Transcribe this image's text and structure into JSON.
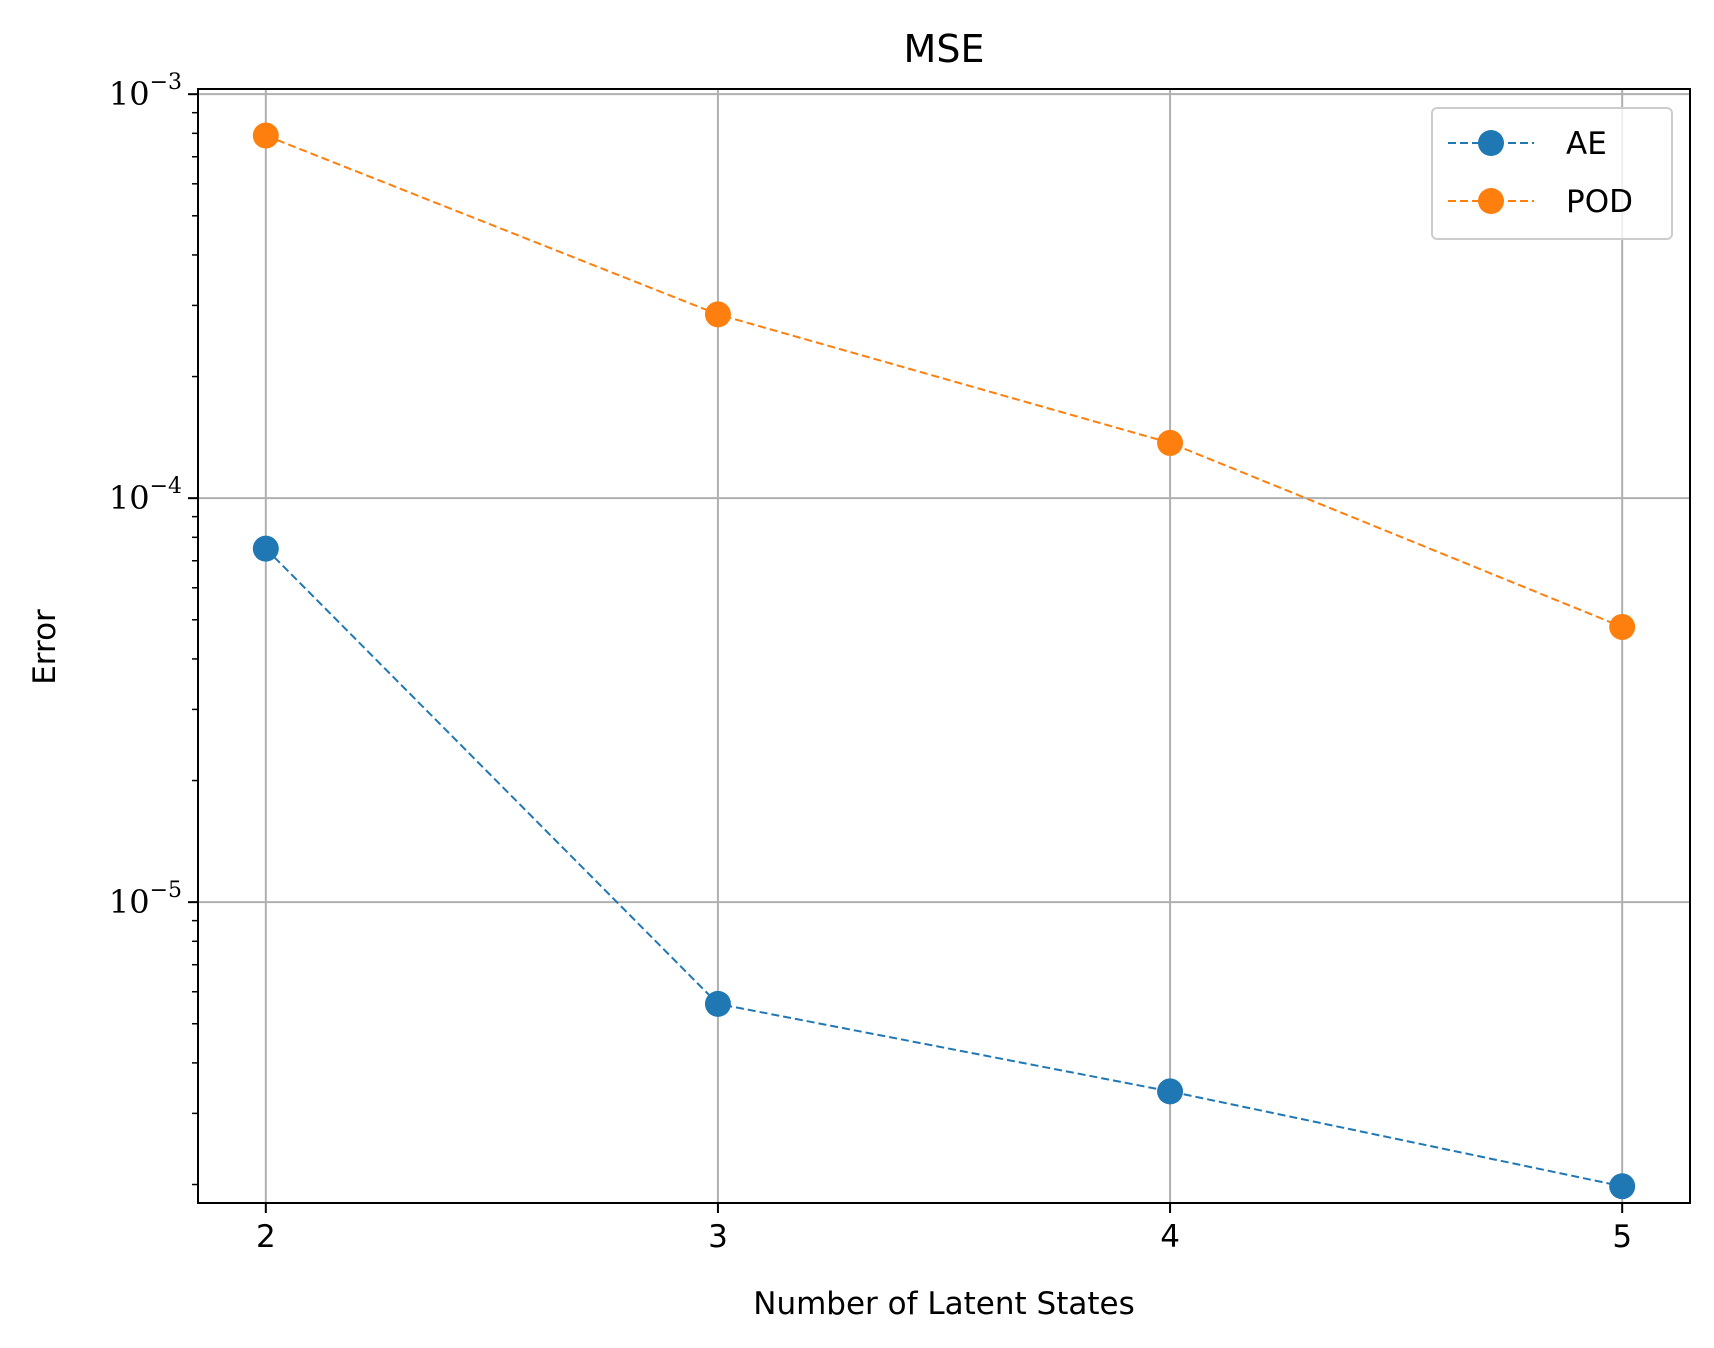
{
  "chart_data": {
    "type": "line",
    "title": "MSE",
    "xlabel": "Number of Latent States",
    "ylabel": "Error",
    "x": [
      2,
      3,
      4,
      5
    ],
    "x_ticks": [
      "2",
      "3",
      "4",
      "5"
    ],
    "xlim": [
      1.85,
      5.15
    ],
    "y_scale": "log",
    "ylim": [
      1.8e-06,
      0.00103
    ],
    "y_ticks": [
      {
        "value": 0.001,
        "base": "10",
        "exp": "−3"
      },
      {
        "value": 0.0001,
        "base": "10",
        "exp": "−4"
      },
      {
        "value": 1e-05,
        "base": "10",
        "exp": "−5"
      }
    ],
    "grid": true,
    "legend": "top-right",
    "series": [
      {
        "name": "AE",
        "color": "#1f77b4",
        "line_style": "dashed",
        "marker": "circle",
        "values": [
          7.5e-05,
          5.6e-06,
          3.4e-06,
          1.98e-06
        ]
      },
      {
        "name": "POD",
        "color": "#ff7f0e",
        "line_style": "dashed",
        "marker": "circle",
        "values": [
          0.00079,
          0.000285,
          0.000137,
          4.8e-05
        ]
      }
    ]
  }
}
